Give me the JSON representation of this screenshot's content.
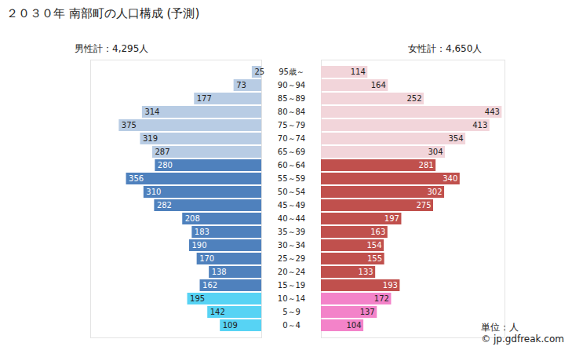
{
  "chart_data": {
    "type": "bar",
    "title": "２０３０年 南部町の人口構成 (予測)",
    "orientation": "horizontal",
    "data_labels": true,
    "tick_labels": "y",
    "xlim": [
      0,
      450
    ],
    "categories": [
      "0～4",
      "5～9",
      "10～14",
      "15～19",
      "20～24",
      "25～29",
      "30～34",
      "35～39",
      "40～44",
      "45～49",
      "50～54",
      "55～59",
      "60～64",
      "65～69",
      "70～74",
      "75～79",
      "80～84",
      "85～89",
      "90～94",
      "95歳～"
    ],
    "series": [
      {
        "name": "男性計：4,295人",
        "values": [
          109,
          142,
          195,
          162,
          138,
          170,
          190,
          183,
          208,
          282,
          310,
          356,
          280,
          287,
          319,
          375,
          314,
          177,
          73,
          25
        ],
        "colors": [
          "#57d3f4",
          "#57d3f4",
          "#57d3f4",
          "#4f81bd",
          "#4f81bd",
          "#4f81bd",
          "#4f81bd",
          "#4f81bd",
          "#4f81bd",
          "#4f81bd",
          "#4f81bd",
          "#4f81bd",
          "#4f81bd",
          "#b8cce4",
          "#b8cce4",
          "#b8cce4",
          "#b8cce4",
          "#b8cce4",
          "#b8cce4",
          "#b8cce4"
        ]
      },
      {
        "name": "女性計：4,650人",
        "values": [
          104,
          137,
          172,
          193,
          133,
          155,
          154,
          163,
          197,
          275,
          302,
          340,
          281,
          304,
          354,
          413,
          443,
          252,
          164,
          114
        ],
        "colors": [
          "#f383c9",
          "#f383c9",
          "#f383c9",
          "#c0504d",
          "#c0504d",
          "#c0504d",
          "#c0504d",
          "#c0504d",
          "#c0504d",
          "#c0504d",
          "#c0504d",
          "#c0504d",
          "#c0504d",
          "#f2d5da",
          "#f2d5da",
          "#f2d5da",
          "#f2d5da",
          "#f2d5da",
          "#f2d5da",
          "#f2d5da"
        ]
      }
    ],
    "annotations": [
      "単位：人",
      "© jp.gdfreak.com"
    ]
  }
}
